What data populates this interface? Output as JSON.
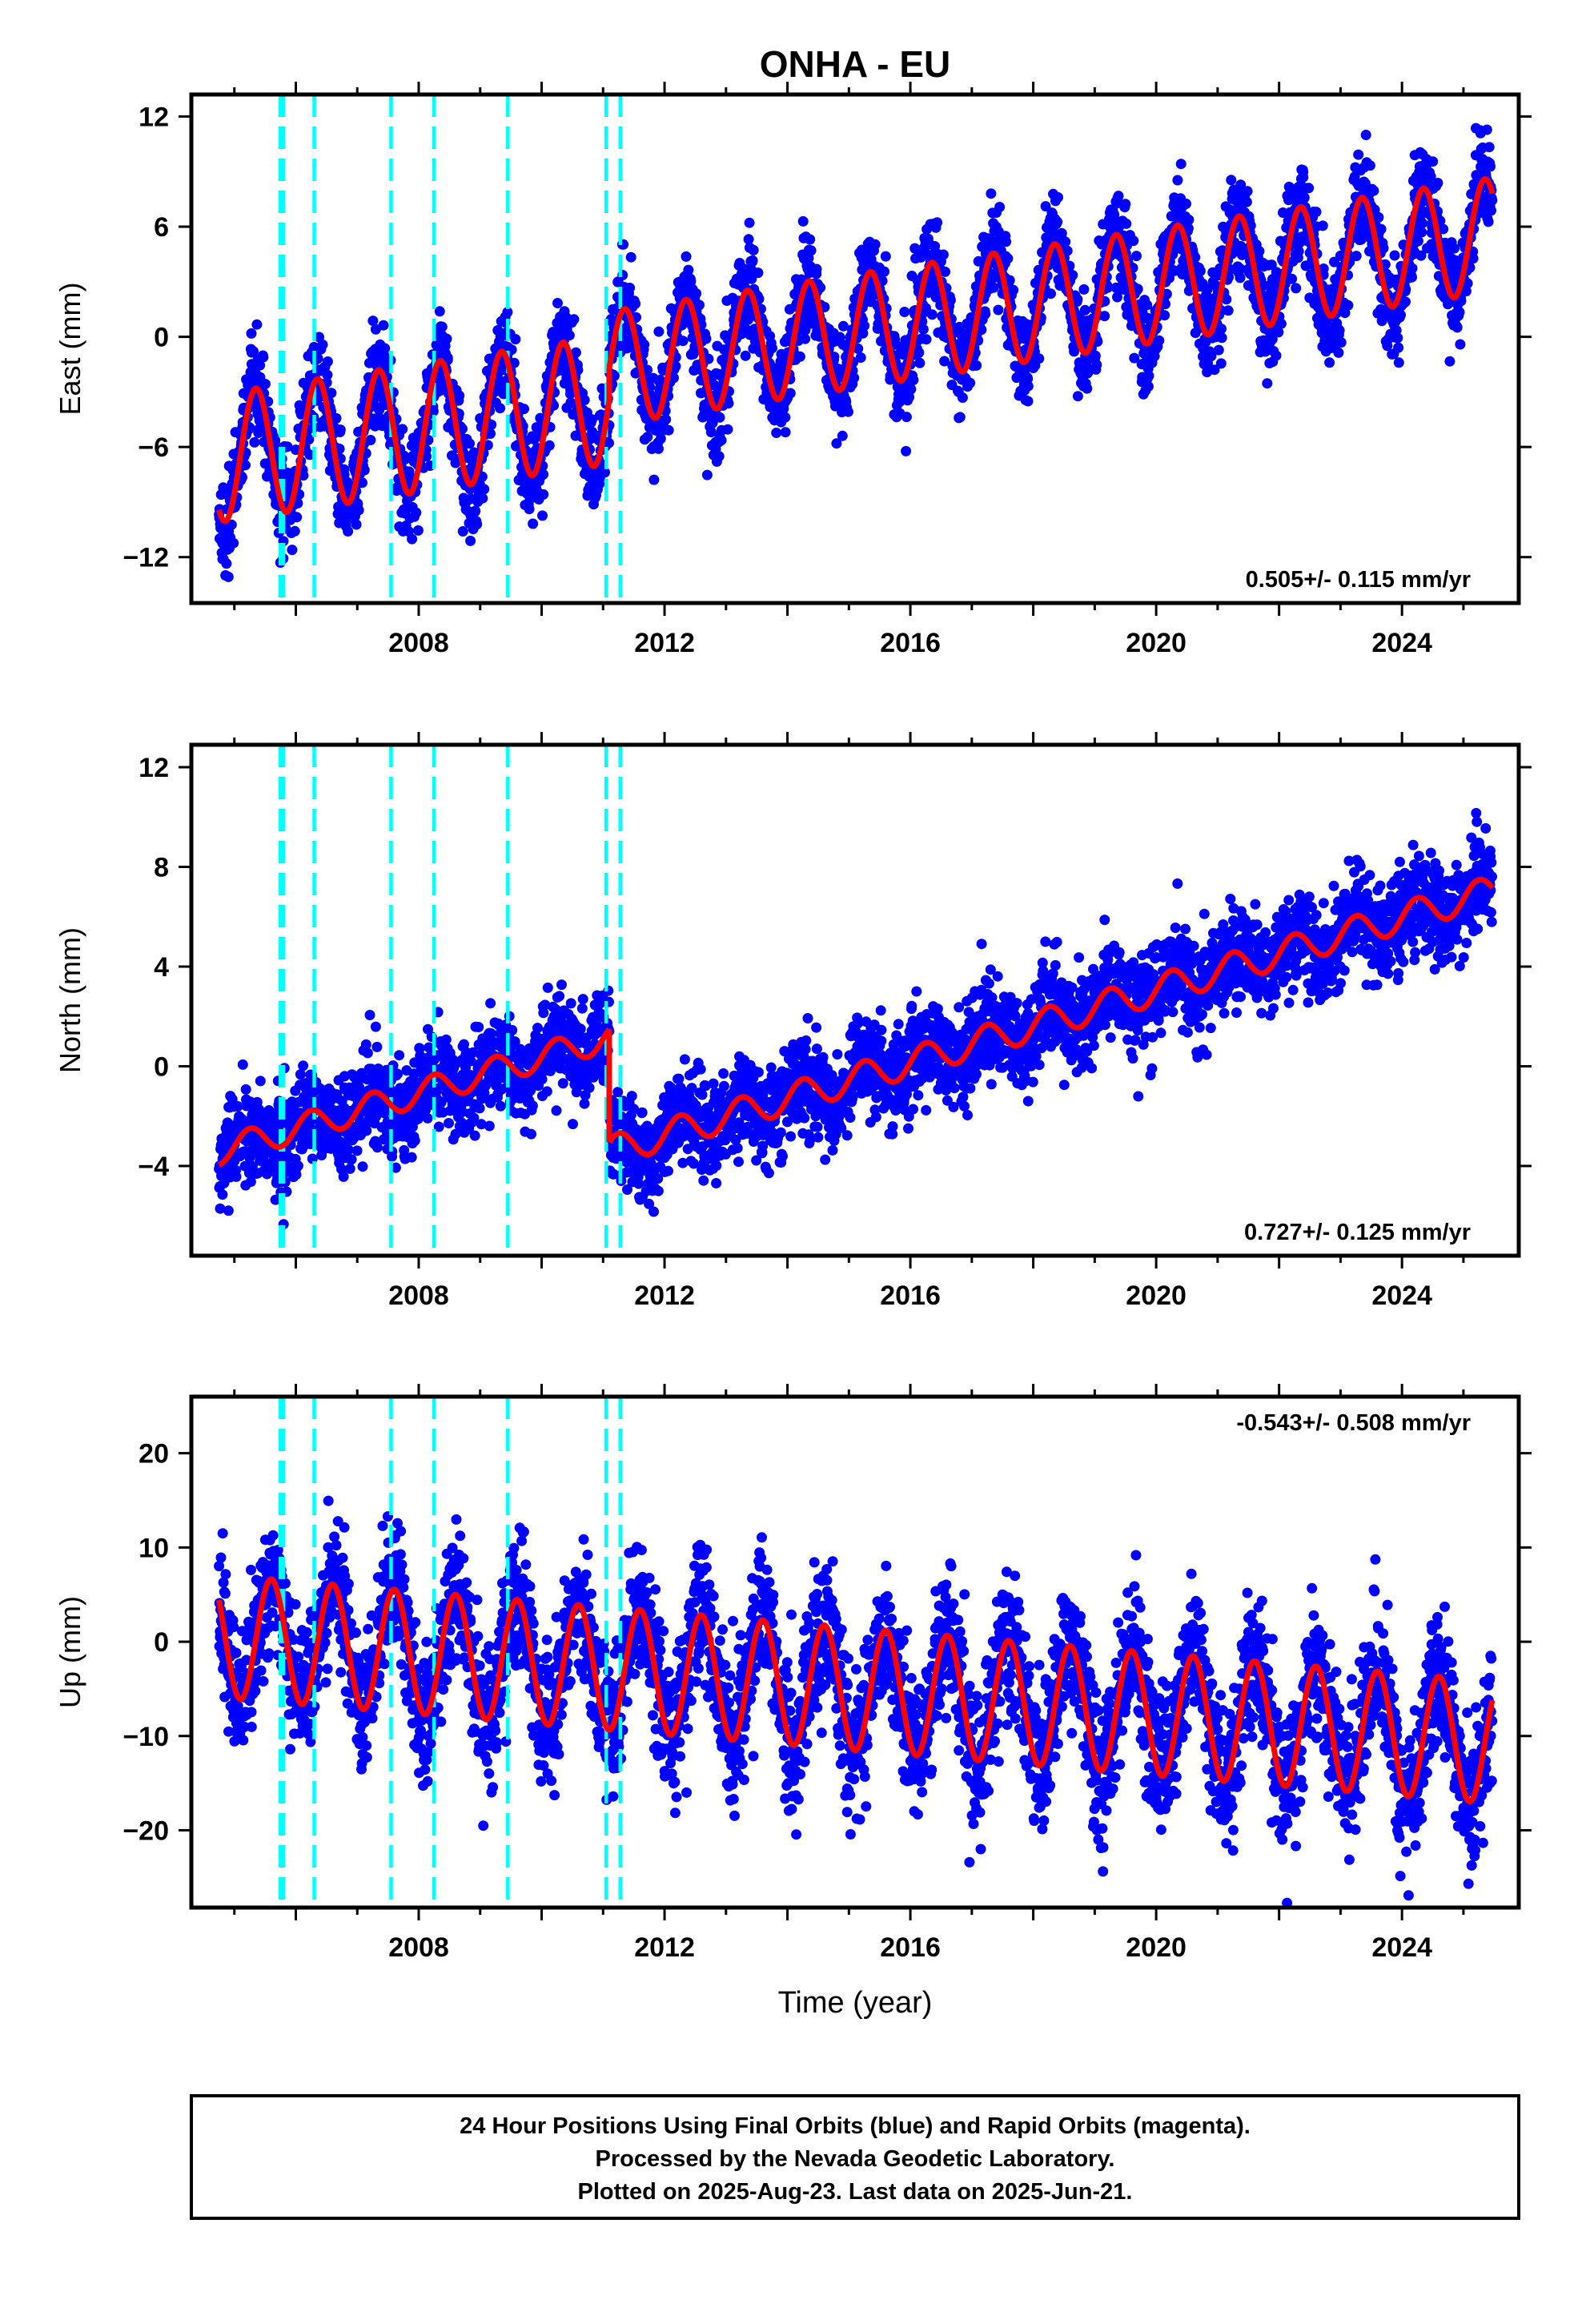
{
  "figure": {
    "title": "ONHA - EU",
    "xlabel": "Time (year)",
    "footer": [
      "24 Hour Positions Using Final Orbits (blue) and Rapid Orbits (magenta).",
      "Processed by the Nevada Geodetic Laboratory.",
      "Plotted on 2025-Aug-23. Last data on 2025-Jun-21."
    ]
  },
  "colors": {
    "data_points": "#0000ff",
    "model_fit": "#ff0000",
    "equipment_change": "#00ffff",
    "frame": "#000000"
  },
  "chart_data": [
    {
      "type": "scatter",
      "panel": "east",
      "ylabel": "East (mm)",
      "rate_label": "0.505+/- 0.115 mm/yr",
      "rate_position": "bottom-right",
      "xlim": [
        2004.3,
        2025.9
      ],
      "ylim": [
        -14.5,
        13.2
      ],
      "x_ticks": [
        2008,
        2012,
        2016,
        2020,
        2024
      ],
      "y_ticks": [
        -12,
        -6,
        0,
        6,
        12
      ],
      "equipment_changes": [
        2005.75,
        2005.8,
        2006.3,
        2007.55,
        2008.25,
        2009.45,
        2011.05,
        2011.28
      ],
      "series": [
        {
          "name": "",
          "kind": "points",
          "x_start": 2004.75,
          "x_end": 2025.47,
          "scatter_sd": 1.3
        },
        {
          "kind": "fit",
          "color": "model_fit",
          "segments": [
            {
              "x0": 2004.75,
              "x1": 2011.1,
              "offset_at_x0": -6.6,
              "trend_mm_per_yr": 0.5,
              "annual_amp": 3.5,
              "annual_peak": 0.35
            },
            {
              "x0": 2011.1,
              "x1": 2025.47,
              "offset_at_x0": -1.7,
              "trend_mm_per_yr": 0.505,
              "annual_amp": 3.1,
              "annual_peak": 0.35
            }
          ]
        }
      ]
    },
    {
      "type": "scatter",
      "panel": "north",
      "ylabel": "North (mm)",
      "rate_label": "0.727+/- 0.125 mm/yr",
      "rate_position": "bottom-right",
      "xlim": [
        2004.3,
        2025.9
      ],
      "ylim": [
        -7.6,
        12.9
      ],
      "x_ticks": [
        2008,
        2012,
        2016,
        2020,
        2024
      ],
      "y_ticks": [
        -4,
        0,
        4,
        8,
        12
      ],
      "equipment_changes": [
        2005.75,
        2005.8,
        2006.3,
        2007.55,
        2008.25,
        2009.45,
        2011.05,
        2011.28
      ],
      "series": [
        {
          "name": "",
          "kind": "points",
          "x_start": 2004.75,
          "x_end": 2025.47,
          "scatter_sd": 0.95
        },
        {
          "kind": "fit",
          "color": "model_fit",
          "segments": [
            {
              "x0": 2004.75,
              "x1": 2011.1,
              "offset_at_x0": -3.4,
              "trend_mm_per_yr": 0.72,
              "annual_amp": 0.55,
              "annual_peak": 0.25
            },
            {
              "x0": 2011.1,
              "x1": 2025.47,
              "offset_at_x0": -3.4,
              "trend_mm_per_yr": 0.727,
              "annual_amp": 0.6,
              "annual_peak": 0.25
            }
          ]
        }
      ]
    },
    {
      "type": "scatter",
      "panel": "up",
      "ylabel": "Up (mm)",
      "rate_label": "-0.543+/- 0.508 mm/yr",
      "rate_position": "top-right",
      "xlim": [
        2004.3,
        2025.9
      ],
      "ylim": [
        -28.2,
        26.0
      ],
      "x_ticks": [
        2008,
        2012,
        2016,
        2020,
        2024
      ],
      "y_ticks": [
        -20,
        -10,
        0,
        10,
        20
      ],
      "equipment_changes": [
        2005.75,
        2005.8,
        2006.3,
        2007.55,
        2008.25,
        2009.45,
        2011.05,
        2011.28
      ],
      "series": [
        {
          "name": "",
          "kind": "points",
          "x_start": 2004.75,
          "x_end": 2025.47,
          "scatter_sd": 3.6
        },
        {
          "kind": "fit",
          "color": "model_fit",
          "segments": [
            {
              "x0": 2004.75,
              "x1": 2025.47,
              "offset_at_x0": 0.6,
              "trend_mm_per_yr": -0.543,
              "annual_amp": 6.5,
              "annual_peak": 0.6
            }
          ]
        }
      ]
    }
  ]
}
